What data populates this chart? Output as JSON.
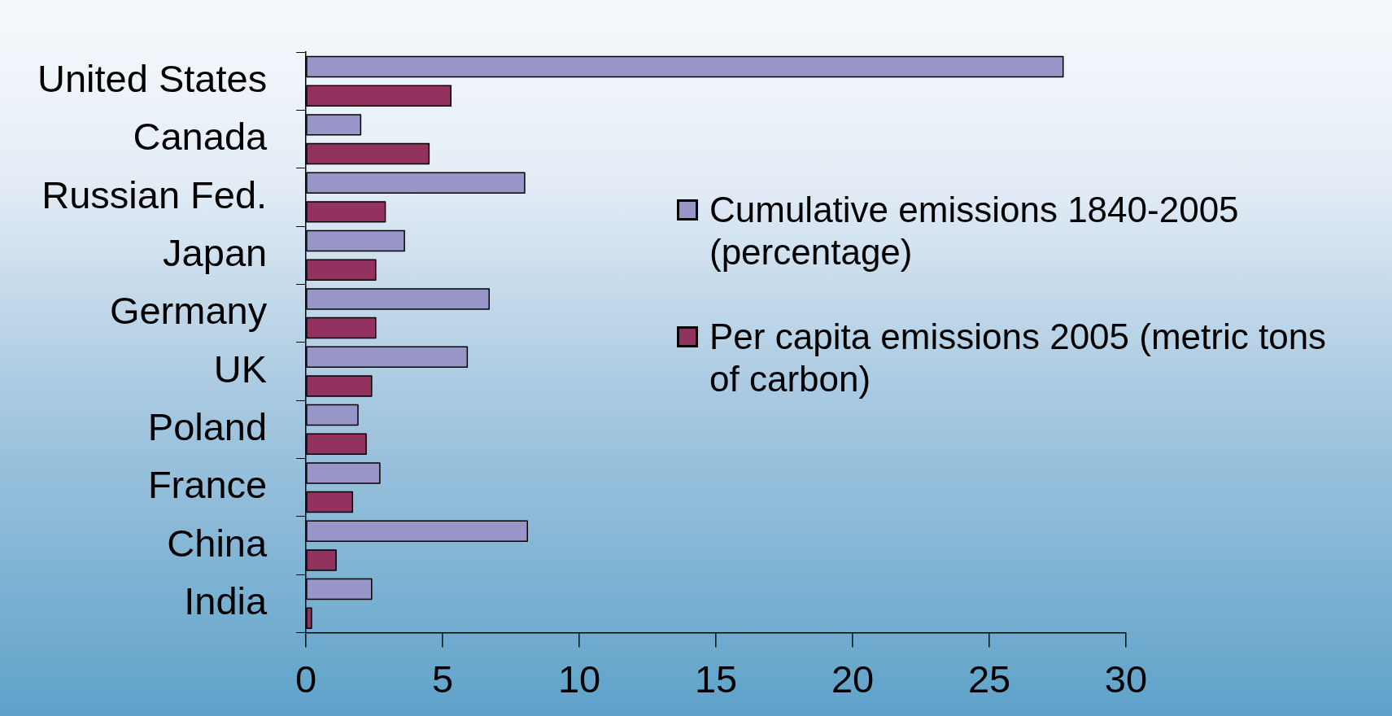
{
  "chart_data": {
    "type": "bar",
    "orientation": "horizontal",
    "categories": [
      "United States",
      "Canada",
      "Russian Fed.",
      "Japan",
      "Germany",
      "UK",
      "Poland",
      "France",
      "China",
      "India"
    ],
    "series": [
      {
        "name": "Cumulative emissions 1840-2005 (percentage)",
        "color": "#9896c8",
        "values": [
          27.7,
          2.0,
          8.0,
          3.6,
          6.7,
          5.9,
          1.9,
          2.7,
          8.1,
          2.4
        ]
      },
      {
        "name": "Per capita emissions 2005 (metric tons of carbon)",
        "color": "#92325e",
        "values": [
          5.3,
          4.5,
          2.9,
          2.55,
          2.55,
          2.4,
          2.2,
          1.7,
          1.1,
          0.2
        ]
      }
    ],
    "xlim": [
      0,
      30
    ],
    "xticks": [
      0,
      5,
      10,
      15,
      20,
      25,
      30
    ],
    "grid": false,
    "legend": "right"
  }
}
